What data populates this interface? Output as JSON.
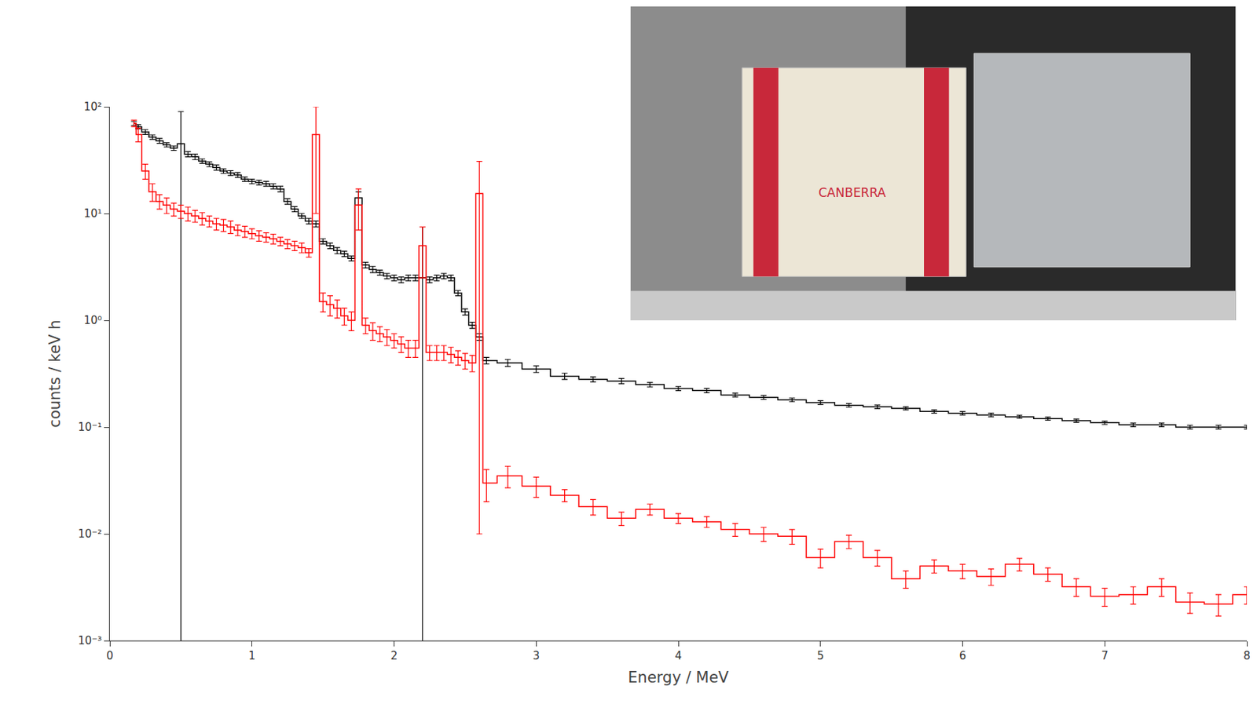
{
  "chart_data": {
    "type": "line",
    "line_style": "step",
    "log": "y",
    "grid": false,
    "x_label": "Energy / MeV",
    "y_label": "counts / keV h",
    "annotations": [
      "CANBERRA"
    ],
    "xlim": [
      0,
      8
    ],
    "xticks": [
      0,
      1,
      2,
      3,
      4,
      5,
      6,
      7,
      8
    ],
    "ylim": [
      0.001,
      100
    ],
    "yticks": [
      {
        "value": 0.001,
        "label": "10⁻³"
      },
      {
        "value": 0.01,
        "label": "10⁻²"
      },
      {
        "value": 0.1,
        "label": "10⁻¹"
      },
      {
        "value": 1,
        "label": "10⁰"
      },
      {
        "value": 10,
        "label": "10¹"
      },
      {
        "value": 100,
        "label": "10²"
      }
    ],
    "x": [
      0.17,
      0.2,
      0.25,
      0.3,
      0.35,
      0.4,
      0.45,
      0.5,
      0.55,
      0.6,
      0.65,
      0.7,
      0.75,
      0.8,
      0.85,
      0.9,
      0.95,
      1.0,
      1.05,
      1.1,
      1.15,
      1.2,
      1.25,
      1.3,
      1.35,
      1.4,
      1.45,
      1.5,
      1.55,
      1.6,
      1.65,
      1.7,
      1.75,
      1.8,
      1.85,
      1.9,
      1.95,
      2.0,
      2.05,
      2.1,
      2.15,
      2.2,
      2.25,
      2.3,
      2.35,
      2.4,
      2.45,
      2.5,
      2.55,
      2.6,
      2.65,
      2.8,
      3.0,
      3.2,
      3.4,
      3.6,
      3.8,
      4.0,
      4.2,
      4.4,
      4.6,
      4.8,
      5.0,
      5.2,
      5.4,
      5.6,
      5.8,
      6.0,
      6.2,
      6.4,
      6.6,
      6.8,
      7.0,
      7.2,
      7.4,
      7.6,
      7.8,
      8.0
    ],
    "series": [
      {
        "color": "#000000",
        "values": [
          70,
          65,
          58,
          52,
          48,
          44,
          41,
          45,
          36,
          34,
          31,
          29,
          27,
          25,
          24,
          23,
          21,
          20,
          19.5,
          19,
          18,
          17,
          13,
          11,
          9.5,
          8.5,
          8,
          5.5,
          5,
          4.5,
          4.2,
          3.8,
          14,
          3.3,
          3.0,
          2.8,
          2.6,
          2.5,
          2.4,
          2.5,
          2.5,
          2.5,
          2.4,
          2.5,
          2.6,
          2.5,
          1.8,
          1.2,
          0.9,
          0.7,
          0.42,
          0.4,
          0.35,
          0.3,
          0.28,
          0.27,
          0.25,
          0.23,
          0.22,
          0.2,
          0.19,
          0.18,
          0.17,
          0.16,
          0.155,
          0.15,
          0.14,
          0.135,
          0.13,
          0.125,
          0.12,
          0.115,
          0.11,
          0.105,
          0.105,
          0.1,
          0.1,
          0.1
        ],
        "errors": [
          3,
          3,
          3,
          2.5,
          2.5,
          2,
          2,
          45,
          2,
          2,
          1.5,
          1.5,
          1.5,
          1.2,
          1.2,
          1.2,
          1,
          1,
          1,
          1,
          1,
          1,
          0.8,
          0.6,
          0.5,
          0.5,
          0.5,
          0.3,
          0.3,
          0.3,
          0.25,
          0.2,
          2,
          0.2,
          0.2,
          0.15,
          0.15,
          0.15,
          0.15,
          0.15,
          0.15,
          5,
          0.15,
          0.15,
          0.15,
          0.15,
          0.1,
          0.08,
          0.06,
          0.05,
          0.03,
          0.03,
          0.025,
          0.02,
          0.015,
          0.015,
          0.012,
          0.01,
          0.01,
          0.008,
          0.008,
          0.007,
          0.007,
          0.006,
          0.006,
          0.005,
          0.005,
          0.005,
          0.005,
          0.004,
          0.004,
          0.004,
          0.004,
          0.004,
          0.004,
          0.004,
          0.004,
          0.004
        ]
      },
      {
        "color": "#ff0000",
        "values": [
          70,
          55,
          25,
          16,
          13,
          12,
          11,
          10.5,
          10,
          9.5,
          9,
          8.5,
          8,
          7.8,
          7.5,
          7,
          6.8,
          6.5,
          6.2,
          6,
          5.8,
          5.5,
          5.2,
          5,
          4.8,
          4.3,
          55,
          1.5,
          1.4,
          1.3,
          1.1,
          1.0,
          12,
          0.9,
          0.8,
          0.75,
          0.7,
          0.65,
          0.6,
          0.55,
          0.55,
          5,
          0.5,
          0.5,
          0.5,
          0.48,
          0.45,
          0.42,
          0.4,
          15.4,
          0.03,
          0.035,
          0.028,
          0.023,
          0.018,
          0.014,
          0.017,
          0.014,
          0.013,
          0.011,
          0.01,
          0.0095,
          0.006,
          0.0085,
          0.006,
          0.0038,
          0.005,
          0.0045,
          0.004,
          0.0052,
          0.0042,
          0.0032,
          0.0026,
          0.0027,
          0.0032,
          0.0023,
          0.0022,
          0.0027
        ],
        "errors": [
          5,
          8,
          4,
          3,
          2,
          2,
          1.5,
          1.5,
          1.5,
          1.2,
          1.2,
          1,
          1,
          1,
          1,
          0.8,
          0.8,
          0.7,
          0.7,
          0.6,
          0.6,
          0.5,
          0.5,
          0.5,
          0.5,
          0.4,
          45,
          0.3,
          0.3,
          0.25,
          0.2,
          0.2,
          5,
          0.15,
          0.15,
          0.12,
          0.12,
          0.1,
          0.1,
          0.1,
          0.1,
          2.5,
          0.08,
          0.08,
          0.08,
          0.08,
          0.07,
          0.07,
          0.07,
          15.39,
          0.01,
          0.008,
          0.006,
          0.003,
          0.003,
          0.002,
          0.002,
          0.0015,
          0.0015,
          0.0015,
          0.0015,
          0.0015,
          0.0012,
          0.0012,
          0.001,
          0.0007,
          0.0007,
          0.0007,
          0.0007,
          0.0007,
          0.0006,
          0.0006,
          0.0005,
          0.0005,
          0.0006,
          0.0005,
          0.0005,
          0.0005
        ]
      }
    ]
  }
}
